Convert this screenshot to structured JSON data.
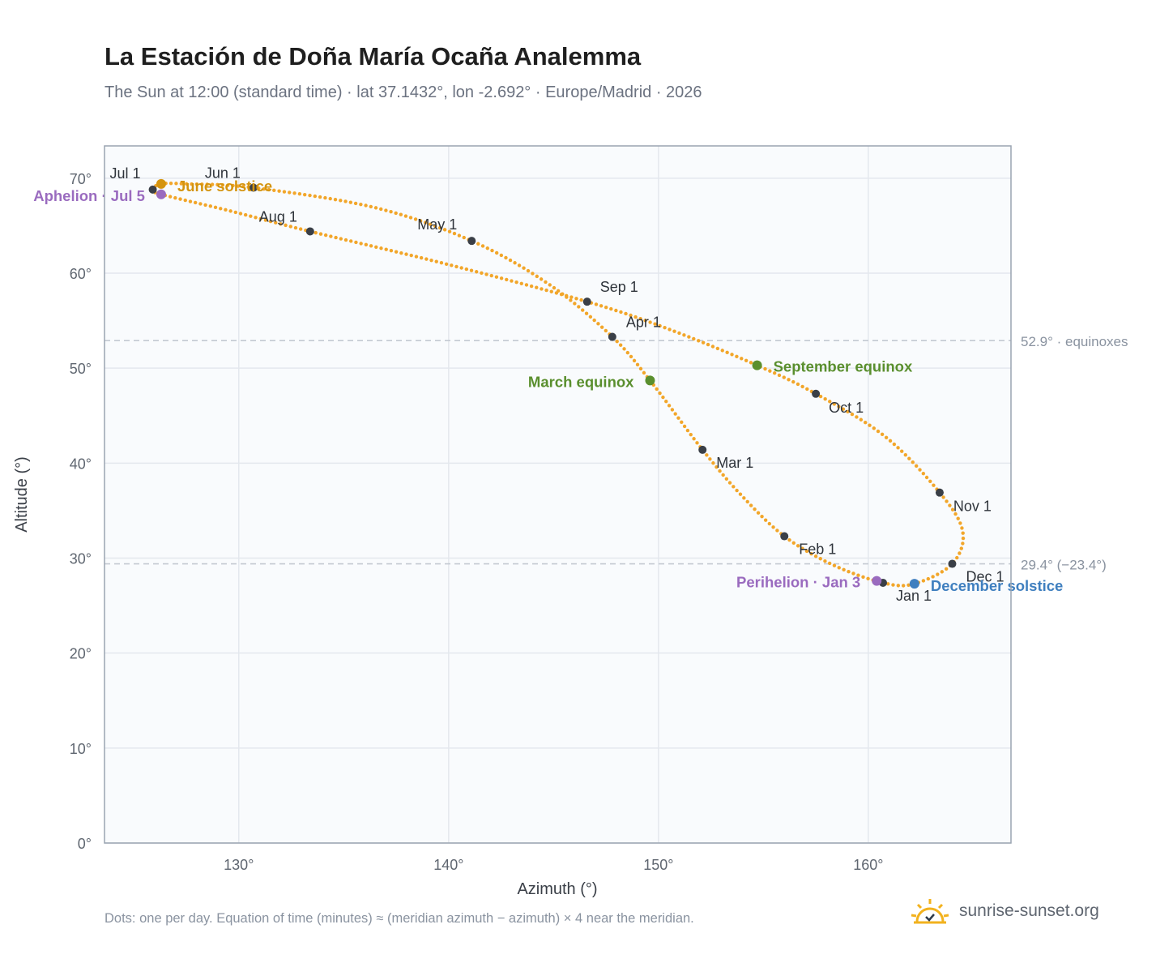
{
  "title": "La Estación de Doña María Ocaña Analemma",
  "subtitle": "The Sun at 12:00 (standard time) · lat 37.1432°, lon -2.692° · Europe/Madrid · 2026",
  "footnote": "Dots: one per day. Equation of time (minutes) ≈ (meridian azimuth − azimuth) × 4 near the meridian.",
  "brand": {
    "name": "sunrise-sunset.org",
    "icon": "sun-logo-icon"
  },
  "colors": {
    "path": "#f2a62a",
    "month_dot": "#3a3f47",
    "equinox": "#5a8f2e",
    "june_solstice": "#d4940f",
    "december_solstice": "#3f7fbf",
    "apsis": "#9a6bbf",
    "reference_line": "#c3c9d2",
    "plot_bg": "#f9fbfd",
    "grid": "#e4e8ee",
    "frame": "#9aa4b1"
  },
  "chart_data": {
    "type": "scatter",
    "title": "La Estación de Doña María Ocaña Analemma",
    "xlabel": "Azimuth (°)",
    "ylabel": "Altitude (°)",
    "xlim": [
      123.6,
      166.8
    ],
    "ylim": [
      0,
      73.4
    ],
    "x_ticks": [
      130,
      140,
      150,
      160
    ],
    "x_tick_labels": [
      "130°",
      "140°",
      "150°",
      "160°"
    ],
    "y_ticks": [
      0,
      10,
      20,
      30,
      40,
      50,
      60,
      70
    ],
    "y_tick_labels": [
      "0°",
      "10°",
      "20°",
      "30°",
      "40°",
      "50°",
      "60°",
      "70°"
    ],
    "grid": true,
    "reference_lines": [
      {
        "y": 52.9,
        "label": "52.9° · equinoxes"
      },
      {
        "y": 29.4,
        "label": "29.4° (−23.4°)"
      }
    ],
    "month_points": [
      {
        "label": "Jan 1",
        "x": 160.7,
        "y": 27.4
      },
      {
        "label": "Feb 1",
        "x": 156.0,
        "y": 32.3
      },
      {
        "label": "Mar 1",
        "x": 152.1,
        "y": 41.4
      },
      {
        "label": "Apr 1",
        "x": 147.8,
        "y": 53.3
      },
      {
        "label": "May 1",
        "x": 141.1,
        "y": 63.4
      },
      {
        "label": "Jun 1",
        "x": 130.7,
        "y": 69.0
      },
      {
        "label": "Jul 1",
        "x": 125.9,
        "y": 68.8
      },
      {
        "label": "Aug 1",
        "x": 133.4,
        "y": 64.4
      },
      {
        "label": "Sep 1",
        "x": 146.6,
        "y": 57.0
      },
      {
        "label": "Oct 1",
        "x": 157.5,
        "y": 47.3
      },
      {
        "label": "Nov 1",
        "x": 163.4,
        "y": 36.9
      },
      {
        "label": "Dec 1",
        "x": 164.0,
        "y": 29.4
      }
    ],
    "events": [
      {
        "label": "March equinox",
        "x": 149.6,
        "y": 48.7,
        "kind": "equinox"
      },
      {
        "label": "September equinox",
        "x": 154.7,
        "y": 50.3,
        "kind": "equinox"
      },
      {
        "label": "June solstice",
        "x": 126.3,
        "y": 69.4,
        "kind": "june_solstice"
      },
      {
        "label": "December solstice",
        "x": 162.2,
        "y": 27.3,
        "kind": "december_solstice"
      },
      {
        "label": "Aphelion · Jul 5",
        "x": 126.3,
        "y": 68.3,
        "kind": "apsis"
      },
      {
        "label": "Perihelion · Jan 3",
        "x": 160.4,
        "y": 27.6,
        "kind": "apsis"
      }
    ],
    "path_points": [
      {
        "x": 160.7,
        "y": 27.4
      },
      {
        "x": 158.3,
        "y": 29.3
      },
      {
        "x": 156.0,
        "y": 32.3
      },
      {
        "x": 154.0,
        "y": 36.5
      },
      {
        "x": 152.1,
        "y": 41.4
      },
      {
        "x": 149.6,
        "y": 48.7
      },
      {
        "x": 147.8,
        "y": 53.3
      },
      {
        "x": 144.8,
        "y": 58.8
      },
      {
        "x": 141.1,
        "y": 63.4
      },
      {
        "x": 136.5,
        "y": 66.9
      },
      {
        "x": 130.7,
        "y": 69.0
      },
      {
        "x": 127.5,
        "y": 69.4
      },
      {
        "x": 126.3,
        "y": 69.4
      },
      {
        "x": 125.9,
        "y": 68.8
      },
      {
        "x": 126.3,
        "y": 68.3
      },
      {
        "x": 129.5,
        "y": 66.6
      },
      {
        "x": 133.4,
        "y": 64.4
      },
      {
        "x": 140.0,
        "y": 60.9
      },
      {
        "x": 146.6,
        "y": 57.0
      },
      {
        "x": 150.5,
        "y": 54.1
      },
      {
        "x": 154.7,
        "y": 50.3
      },
      {
        "x": 157.5,
        "y": 47.3
      },
      {
        "x": 160.8,
        "y": 42.8
      },
      {
        "x": 163.4,
        "y": 36.9
      },
      {
        "x": 164.5,
        "y": 32.8
      },
      {
        "x": 164.0,
        "y": 29.4
      },
      {
        "x": 162.2,
        "y": 27.3
      },
      {
        "x": 160.7,
        "y": 27.4
      }
    ]
  }
}
